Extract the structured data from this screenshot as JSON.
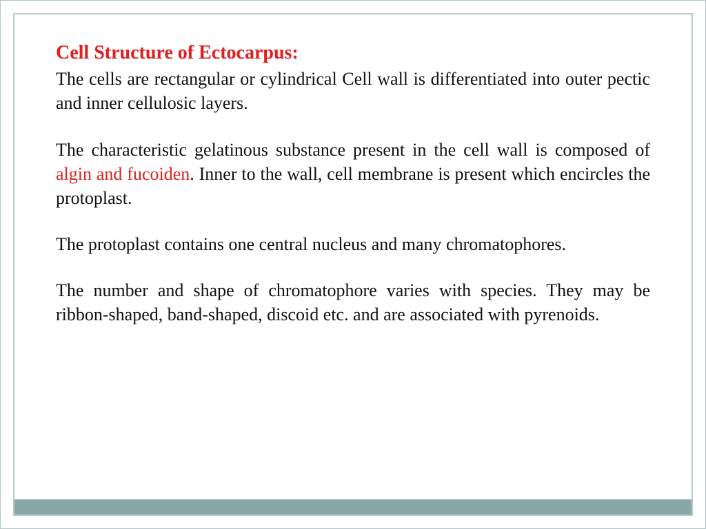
{
  "colors": {
    "heading": "#e02020",
    "highlight": "#e02020",
    "body_text": "#111111",
    "frame_border": "#b8cccc",
    "bottom_bar": "#89a7a7",
    "background": "#ffffff"
  },
  "typography": {
    "heading_fontsize": 28,
    "body_fontsize": 26,
    "font_family": "Georgia, Times New Roman, serif",
    "heading_weight": "bold",
    "alignment": "justify"
  },
  "heading": "Cell Structure of Ectocarpus:",
  "para1": "The cells are rectangular or cylindrical Cell wall is differentiated into outer pectic and inner cellulosic layers.",
  "para2_a": "The characteristic gelatinous substance present in the cell wall is composed of ",
  "para2_hl": "algin and fucoiden",
  "para2_b": ". Inner to the wall, cell membrane is present which encircles the protoplast.",
  "para3": "The protoplast contains one central nucleus and many chromatophores.",
  "para4": "The number and shape of chromatophore varies with species. They may be ribbon-shaped, band-shaped, discoid etc. and are associated with pyrenoids."
}
